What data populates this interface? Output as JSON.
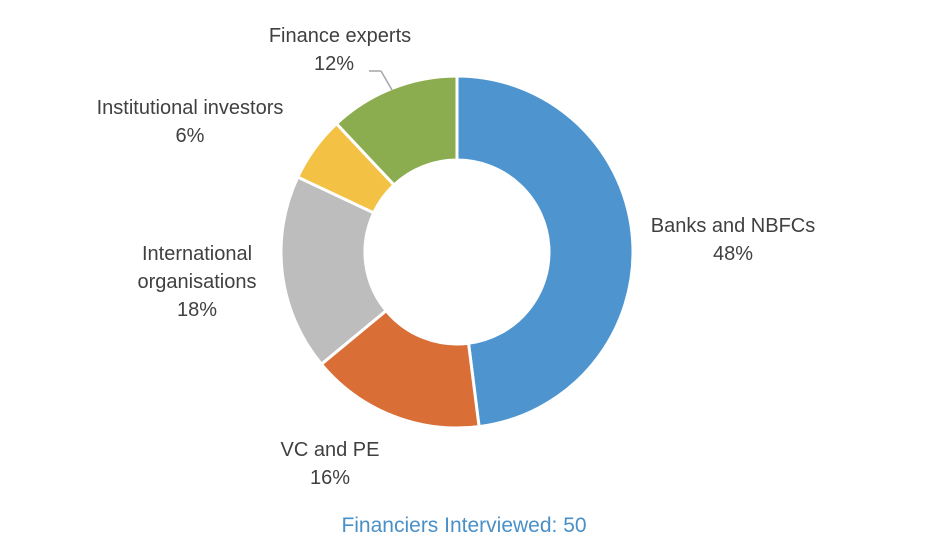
{
  "chart_data": {
    "type": "pie",
    "variant": "donut",
    "categories": [
      "Banks and NBFCs",
      "VC and PE",
      "International organisations",
      "Institutional investors",
      "Finance experts"
    ],
    "values": [
      48,
      16,
      18,
      6,
      12
    ],
    "value_labels": [
      "48%",
      "16%",
      "18%",
      "6%",
      "12%"
    ],
    "colors": [
      "#4e95d0",
      "#d96e36",
      "#bdbdbd",
      "#f3c143",
      "#8bad4f"
    ],
    "legend": "none",
    "caption": "Financiers Interviewed: 50"
  },
  "labels": [
    {
      "lines": [
        "Banks and NBFCs"
      ],
      "value": "48%"
    },
    {
      "lines": [
        "VC and PE"
      ],
      "value": "16%"
    },
    {
      "lines": [
        "International",
        "organisations"
      ],
      "value": "18%"
    },
    {
      "lines": [
        "Institutional investors"
      ],
      "value": "6%"
    },
    {
      "lines": [
        "Finance experts"
      ],
      "value": "12%"
    }
  ],
  "colors": {
    "label_text": "#404040",
    "caption_text": "#4a90c8",
    "leader_line": "#a6a6a6"
  }
}
